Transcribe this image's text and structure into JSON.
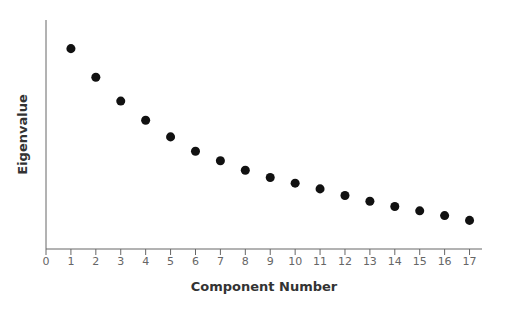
{
  "chart_data": {
    "type": "scatter",
    "xlabel": "Component Number",
    "ylabel": "Eigenvalue",
    "x": [
      1,
      2,
      3,
      4,
      5,
      6,
      7,
      8,
      9,
      10,
      11,
      12,
      13,
      14,
      15,
      16,
      17
    ],
    "values": [
      4.2,
      3.6,
      3.1,
      2.7,
      2.35,
      2.05,
      1.85,
      1.65,
      1.5,
      1.38,
      1.26,
      1.12,
      1.0,
      0.89,
      0.8,
      0.7,
      0.6
    ],
    "xlim": [
      0,
      17.5
    ],
    "ylim": [
      0,
      4.8
    ],
    "xticks": [
      0,
      1,
      2,
      3,
      4,
      5,
      6,
      7,
      8,
      9,
      10,
      11,
      12,
      13,
      14,
      15,
      16,
      17
    ],
    "color": "#111111",
    "grid": false,
    "tick_labels": "x"
  }
}
